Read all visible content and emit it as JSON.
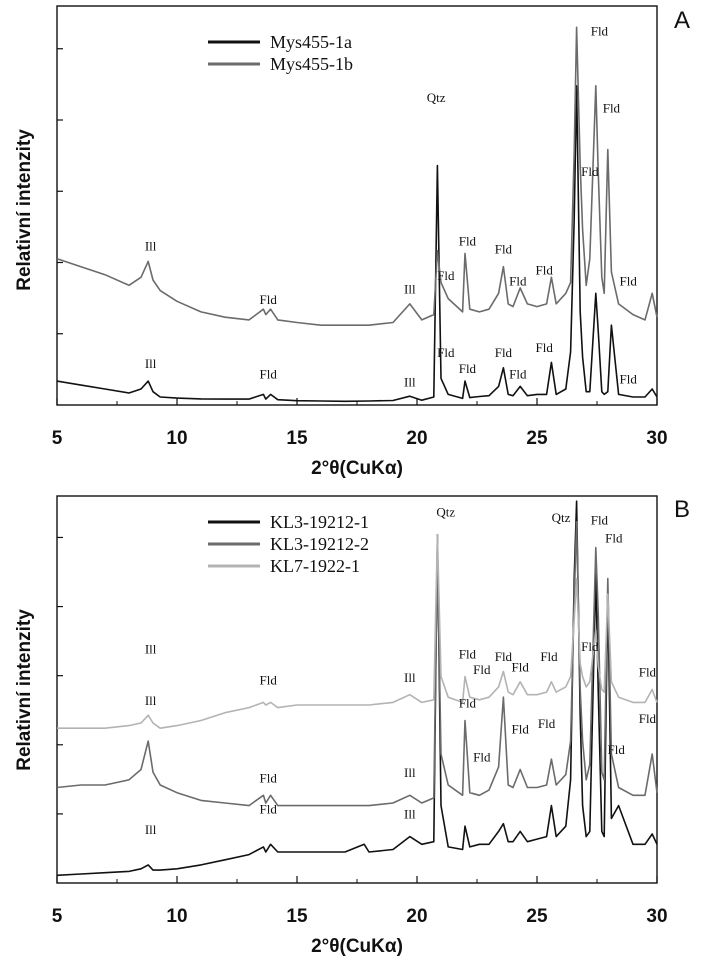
{
  "chart_data": [
    {
      "type": "line",
      "panel_label": "A",
      "ylabel": "Relativní intenzity",
      "xlabel": "2°θ(CuKα)",
      "xlim": [
        5,
        30
      ],
      "xticks": [
        "5",
        "10",
        "15",
        "20",
        "25",
        "30"
      ],
      "legend_position": "top-left",
      "series": [
        {
          "name": "Mys455-1a",
          "color": "#111111",
          "x": [
            5,
            6,
            7,
            8,
            8.5,
            8.8,
            9,
            9.3,
            10,
            11,
            12,
            13,
            13.6,
            13.7,
            13.9,
            14.2,
            15,
            16,
            17,
            18,
            19,
            19.7,
            20.2,
            20.7,
            20.85,
            21,
            21.3,
            21.9,
            22,
            22.2,
            22.6,
            23,
            23.4,
            23.6,
            23.8,
            24,
            24.3,
            24.6,
            25,
            25.4,
            25.6,
            25.8,
            26.2,
            26.4,
            26.55,
            26.65,
            26.8,
            26.9,
            27.05,
            27.2,
            27.45,
            27.55,
            27.7,
            27.8,
            27.95,
            28.1,
            28.4,
            29,
            29.5,
            29.8,
            30
          ],
          "y": [
            9,
            7.5,
            6,
            4.5,
            6,
            9,
            5,
            3,
            2.6,
            2.3,
            2.2,
            2.2,
            4,
            2.2,
            4,
            2,
            1.6,
            1.5,
            1.4,
            1.5,
            1.7,
            3.3,
            1.8,
            3,
            90,
            10,
            4,
            2.5,
            9,
            2.8,
            3.2,
            3.5,
            7,
            14,
            4,
            3.5,
            7,
            3.5,
            4,
            4,
            16,
            4,
            6,
            20,
            70,
            120,
            35,
            18,
            5,
            5,
            42,
            28,
            5,
            4,
            5,
            30,
            4,
            3,
            3,
            6,
            3
          ]
        },
        {
          "name": "Mys455-1b",
          "color": "#6b6b6b",
          "x": [
            5,
            6,
            7,
            8,
            8.5,
            8.8,
            9,
            9.3,
            10,
            11,
            12,
            13,
            13.6,
            13.7,
            13.9,
            14.2,
            15,
            16,
            17,
            18,
            19,
            19.7,
            20.2,
            20.7,
            20.85,
            21,
            21.3,
            21.9,
            22,
            22.2,
            22.6,
            23,
            23.4,
            23.6,
            23.8,
            24,
            24.3,
            24.6,
            25,
            25.4,
            25.6,
            25.8,
            26.2,
            26.4,
            26.55,
            26.65,
            26.8,
            26.9,
            27.05,
            27.2,
            27.45,
            27.55,
            27.7,
            27.8,
            27.95,
            28.1,
            28.4,
            29,
            29.5,
            29.8,
            30
          ],
          "y": [
            55,
            52,
            49,
            45,
            48,
            54,
            47,
            43,
            39,
            35,
            33,
            32,
            36,
            34,
            36,
            32,
            31,
            30,
            30,
            30,
            31,
            38,
            32,
            34,
            58,
            46,
            40,
            35,
            57,
            36,
            35,
            36,
            42,
            52,
            38,
            37,
            44,
            38,
            37,
            38,
            48,
            38,
            42,
            46,
            95,
            142,
            90,
            66,
            45,
            55,
            120,
            88,
            48,
            42,
            96,
            50,
            38,
            34,
            32,
            42,
            33
          ]
        }
      ],
      "annotations": [
        {
          "text": "Ill",
          "x": 8.9,
          "y": 58
        },
        {
          "text": "Fld",
          "x": 13.8,
          "y": 38
        },
        {
          "text": "Ill",
          "x": 19.7,
          "y": 42
        },
        {
          "text": "Qtz",
          "x": 20.8,
          "y": 114
        },
        {
          "text": "Fld",
          "x": 21.2,
          "y": 47
        },
        {
          "text": "Fld",
          "x": 22.1,
          "y": 60
        },
        {
          "text": "Fld",
          "x": 23.6,
          "y": 57
        },
        {
          "text": "Fld",
          "x": 24.2,
          "y": 45
        },
        {
          "text": "Fld",
          "x": 25.3,
          "y": 49
        },
        {
          "text": "Fld",
          "x": 27.6,
          "y": 139
        },
        {
          "text": "Fld",
          "x": 28.1,
          "y": 110
        },
        {
          "text": "Fld",
          "x": 27.2,
          "y": 86
        },
        {
          "text": "Fld",
          "x": 28.8,
          "y": 45
        },
        {
          "text": "Ill",
          "x": 8.9,
          "y": 14
        },
        {
          "text": "Fld",
          "x": 13.8,
          "y": 10
        },
        {
          "text": "Ill",
          "x": 19.7,
          "y": 7
        },
        {
          "text": "Fld",
          "x": 21.2,
          "y": 18
        },
        {
          "text": "Fld",
          "x": 22.1,
          "y": 12
        },
        {
          "text": "Fld",
          "x": 23.6,
          "y": 18
        },
        {
          "text": "Fld",
          "x": 24.2,
          "y": 10
        },
        {
          "text": "Fld",
          "x": 25.3,
          "y": 20
        },
        {
          "text": "Fld",
          "x": 28.8,
          "y": 8
        }
      ]
    },
    {
      "type": "line",
      "panel_label": "B",
      "ylabel": "Relativní intenzity",
      "xlabel": "2°θ(CuKα)",
      "xlim": [
        5,
        30
      ],
      "xticks": [
        "5",
        "10",
        "15",
        "20",
        "25",
        "30"
      ],
      "legend_position": "top-left",
      "series": [
        {
          "name": "KL3-19212-1",
          "color": "#111111",
          "x": [
            5,
            6,
            7,
            8,
            8.5,
            8.8,
            9,
            9.3,
            10,
            11,
            12,
            13,
            13.6,
            13.7,
            13.9,
            14.2,
            15,
            16,
            17,
            17.8,
            18,
            19,
            19.7,
            20.2,
            20.7,
            20.85,
            21,
            21.3,
            21.9,
            22,
            22.2,
            22.6,
            23,
            23.4,
            23.6,
            23.8,
            24,
            24.3,
            24.6,
            25,
            25.4,
            25.6,
            25.8,
            26.2,
            26.4,
            26.55,
            26.65,
            26.8,
            26.9,
            27.05,
            27.2,
            27.45,
            27.55,
            27.7,
            27.8,
            27.95,
            28.1,
            28.4,
            29,
            29.5,
            29.8,
            30
          ],
          "y": [
            3,
            3.5,
            4,
            4.5,
            5.5,
            7,
            5,
            5,
            5.5,
            7,
            9,
            11,
            14,
            12,
            15,
            12,
            12,
            12,
            12,
            15,
            12,
            13,
            18,
            15,
            16,
            135,
            30,
            14,
            13,
            22,
            14,
            15,
            15,
            20,
            23,
            16,
            16,
            20,
            16,
            17,
            18,
            30,
            18,
            22,
            40,
            118,
            148,
            65,
            30,
            18,
            20,
            120,
            75,
            20,
            18,
            112,
            25,
            30,
            15,
            15,
            19,
            15
          ]
        },
        {
          "name": "KL3-19212-2",
          "color": "#6b6b6b",
          "x": [
            5,
            6,
            7,
            8,
            8.5,
            8.8,
            9,
            9.3,
            10,
            11,
            12,
            13,
            13.6,
            13.7,
            13.9,
            14.2,
            15,
            16,
            17,
            18,
            19,
            19.7,
            20.2,
            20.7,
            20.85,
            21,
            21.3,
            21.9,
            22,
            22.2,
            22.6,
            23,
            23.4,
            23.6,
            23.8,
            24,
            24.3,
            24.6,
            25,
            25.4,
            25.6,
            25.8,
            26.2,
            26.4,
            26.55,
            26.65,
            26.8,
            26.9,
            27.05,
            27.2,
            27.45,
            27.55,
            27.7,
            27.8,
            27.95,
            28.1,
            28.4,
            29,
            29.5,
            29.8,
            30
          ],
          "y": [
            37,
            38,
            38,
            40,
            44,
            55,
            43,
            38,
            35,
            32,
            31,
            30,
            34,
            31,
            34,
            30,
            30,
            30,
            30,
            30,
            31,
            34,
            31,
            33,
            128,
            50,
            38,
            34,
            63,
            35,
            34,
            36,
            45,
            72,
            38,
            37,
            44,
            37,
            37,
            38,
            48,
            38,
            42,
            55,
            110,
            140,
            75,
            55,
            40,
            46,
            130,
            105,
            43,
            40,
            118,
            50,
            37,
            34,
            34,
            50,
            35
          ]
        },
        {
          "name": "KL7-1922-1",
          "color": "#b3b3b3",
          "x": [
            5,
            6,
            7,
            8,
            8.5,
            8.8,
            9,
            9.3,
            10,
            11,
            12,
            13,
            13.6,
            13.7,
            13.9,
            14.2,
            15,
            16,
            17,
            18,
            19,
            19.7,
            20.2,
            20.7,
            20.85,
            21,
            21.3,
            21.9,
            22,
            22.2,
            22.6,
            23,
            23.4,
            23.6,
            23.8,
            24,
            24.3,
            24.6,
            25,
            25.4,
            25.6,
            25.8,
            26.2,
            26.4,
            26.55,
            26.65,
            26.8,
            26.9,
            27.05,
            27.2,
            27.45,
            27.55,
            27.7,
            27.8,
            27.95,
            28.1,
            28.4,
            29,
            29.5,
            29.8,
            30
          ],
          "y": [
            60,
            60,
            60,
            61,
            62,
            65,
            62,
            60,
            61,
            63,
            66,
            68,
            70,
            69,
            70,
            68,
            69,
            69,
            69,
            69,
            70,
            73,
            70,
            71,
            135,
            80,
            72,
            70,
            80,
            72,
            71,
            72,
            76,
            82,
            74,
            73,
            78,
            73,
            73,
            74,
            78,
            74,
            76,
            80,
            102,
            118,
            85,
            80,
            76,
            78,
            98,
            84,
            75,
            74,
            112,
            78,
            72,
            70,
            70,
            75,
            70
          ]
        }
      ],
      "annotations": [
        {
          "text": "Qtz",
          "x": 21.2,
          "y": 142
        },
        {
          "text": "Qtz",
          "x": 26.0,
          "y": 140
        },
        {
          "text": "Fld",
          "x": 27.6,
          "y": 139
        },
        {
          "text": "Fld",
          "x": 28.2,
          "y": 132
        },
        {
          "text": "Fld",
          "x": 27.2,
          "y": 90
        },
        {
          "text": "Ill",
          "x": 8.9,
          "y": 69
        },
        {
          "text": "Fld",
          "x": 13.8,
          "y": 77
        },
        {
          "text": "Ill",
          "x": 19.7,
          "y": 78
        },
        {
          "text": "Fld",
          "x": 22.1,
          "y": 87
        },
        {
          "text": "Fld",
          "x": 22.7,
          "y": 81
        },
        {
          "text": "Fld",
          "x": 23.6,
          "y": 86
        },
        {
          "text": "Fld",
          "x": 24.3,
          "y": 82
        },
        {
          "text": "Fld",
          "x": 25.5,
          "y": 86
        },
        {
          "text": "Fld",
          "x": 29.6,
          "y": 80
        },
        {
          "text": "Fld",
          "x": 22.1,
          "y": 68
        },
        {
          "text": "Fld",
          "x": 22.7,
          "y": 47
        },
        {
          "text": "Fld",
          "x": 24.3,
          "y": 58
        },
        {
          "text": "Fld",
          "x": 25.4,
          "y": 60
        },
        {
          "text": "Fld",
          "x": 29.6,
          "y": 62
        },
        {
          "text": "Fld",
          "x": 28.3,
          "y": 50
        },
        {
          "text": "Ill",
          "x": 8.9,
          "y": 19
        },
        {
          "text": "Fld",
          "x": 13.8,
          "y": 39
        },
        {
          "text": "Ill",
          "x": 19.7,
          "y": 41
        },
        {
          "text": "Ill",
          "x": 8.9,
          "y": 89
        },
        {
          "text": "Fld",
          "x": 13.8,
          "y": 27
        },
        {
          "text": "Ill",
          "x": 19.7,
          "y": 25
        }
      ]
    }
  ]
}
